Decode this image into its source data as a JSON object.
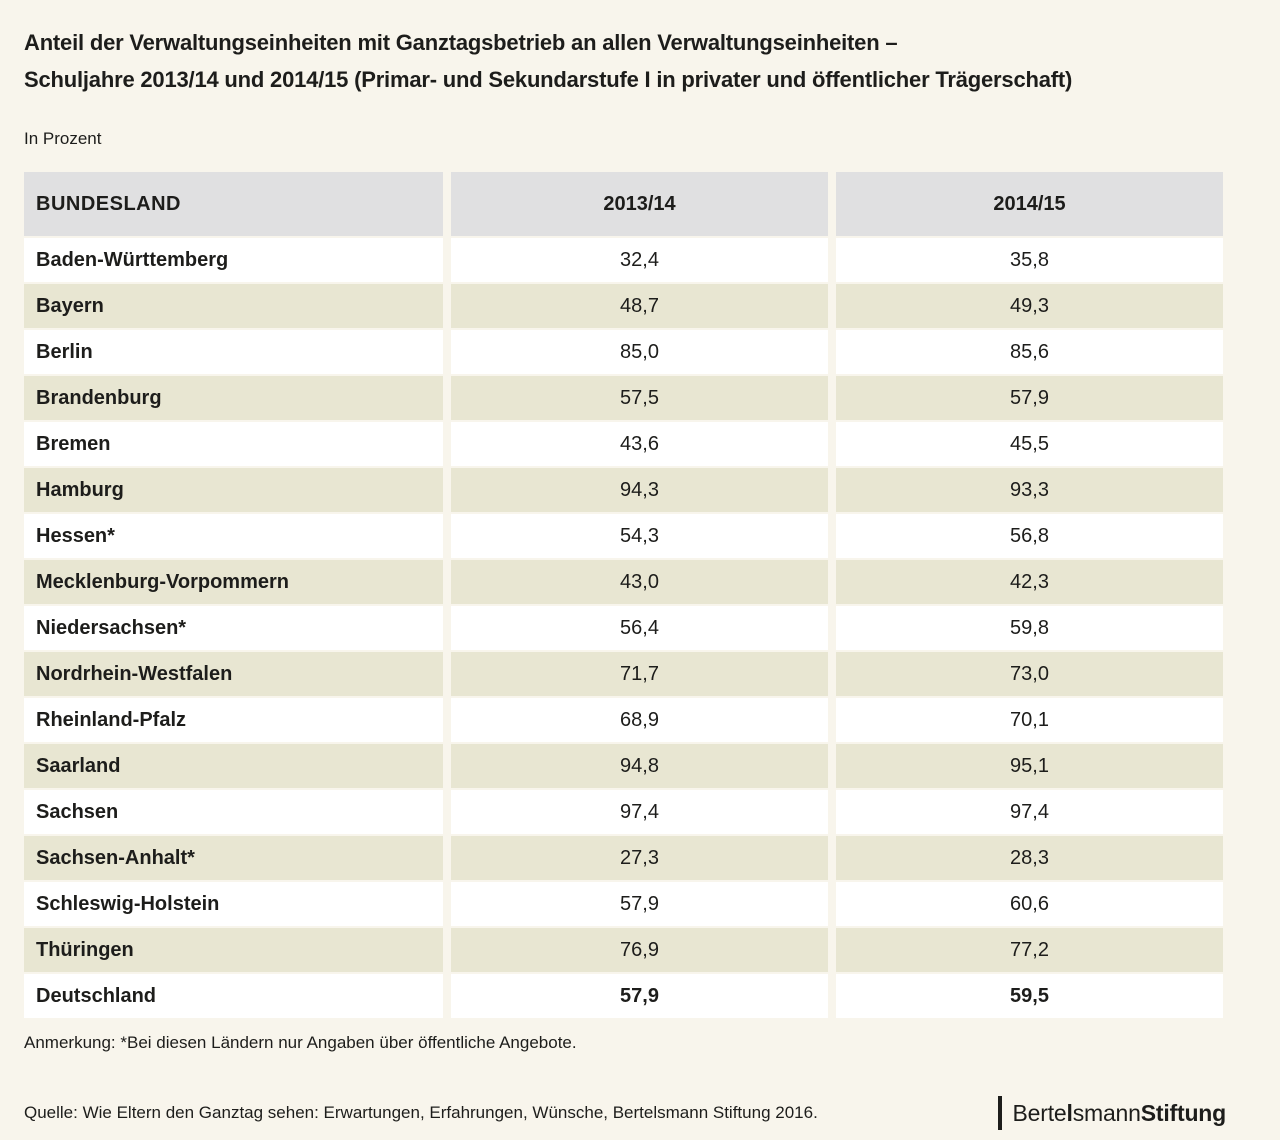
{
  "header": {
    "title_line1": "Anteil der Verwaltungseinheiten mit Ganztagsbetrieb an allen Verwaltungseinheiten –",
    "title_line2": "Schuljahre 2013/14 und 2014/15 (Primar- und Sekundarstufe I in privater und öffentlicher Trägerschaft)",
    "subtitle": "In Prozent"
  },
  "table": {
    "columns": [
      "BUNDESLAND",
      "2013/14",
      "2014/15"
    ],
    "rows": [
      {
        "land": "Baden-Württemberg",
        "y1314": "32,4",
        "y1415": "35,8",
        "is_total": false
      },
      {
        "land": "Bayern",
        "y1314": "48,7",
        "y1415": "49,3",
        "is_total": false
      },
      {
        "land": "Berlin",
        "y1314": "85,0",
        "y1415": "85,6",
        "is_total": false
      },
      {
        "land": "Brandenburg",
        "y1314": "57,5",
        "y1415": "57,9",
        "is_total": false
      },
      {
        "land": "Bremen",
        "y1314": "43,6",
        "y1415": "45,5",
        "is_total": false
      },
      {
        "land": "Hamburg",
        "y1314": "94,3",
        "y1415": "93,3",
        "is_total": false
      },
      {
        "land": "Hessen*",
        "y1314": "54,3",
        "y1415": "56,8",
        "is_total": false
      },
      {
        "land": "Mecklenburg-Vorpommern",
        "y1314": "43,0",
        "y1415": "42,3",
        "is_total": false
      },
      {
        "land": "Niedersachsen*",
        "y1314": "56,4",
        "y1415": "59,8",
        "is_total": false
      },
      {
        "land": "Nordrhein-Westfalen",
        "y1314": "71,7",
        "y1415": "73,0",
        "is_total": false
      },
      {
        "land": "Rheinland-Pfalz",
        "y1314": "68,9",
        "y1415": "70,1",
        "is_total": false
      },
      {
        "land": "Saarland",
        "y1314": "94,8",
        "y1415": "95,1",
        "is_total": false
      },
      {
        "land": "Sachsen",
        "y1314": "97,4",
        "y1415": "97,4",
        "is_total": false
      },
      {
        "land": "Sachsen-Anhalt*",
        "y1314": "27,3",
        "y1415": "28,3",
        "is_total": false
      },
      {
        "land": "Schleswig-Holstein",
        "y1314": "57,9",
        "y1415": "60,6",
        "is_total": false
      },
      {
        "land": "Thüringen",
        "y1314": "76,9",
        "y1415": "77,2",
        "is_total": false
      },
      {
        "land": "Deutschland",
        "y1314": "57,9",
        "y1415": "59,5",
        "is_total": true
      }
    ]
  },
  "note": "Anmerkung: *Bei diesen Ländern nur Angaben über öffentliche Angebote.",
  "source": "Quelle: Wie Eltern den Ganztag sehen: Erwartungen, Erfahrungen, Wünsche, Bertelsmann Stiftung 2016.",
  "logo": {
    "part1": "Berte",
    "part2": "l",
    "part3": "smann",
    "part4": "Stiftung"
  },
  "colors": {
    "page_background": "#f8f5ec",
    "header_row_background": "#e0e0e1",
    "alt_row_background": "#e8e6d2",
    "row_background": "#ffffff",
    "text": "#1d1d1b"
  },
  "chart_data": {
    "type": "table",
    "title": "Anteil der Verwaltungseinheiten mit Ganztagsbetrieb an allen Verwaltungseinheiten – Schuljahre 2013/14 und 2014/15 (Primar- und Sekundarstufe I in privater und öffentlicher Trägerschaft)",
    "unit": "In Prozent",
    "categories": [
      "Baden-Württemberg",
      "Bayern",
      "Berlin",
      "Brandenburg",
      "Bremen",
      "Hamburg",
      "Hessen",
      "Mecklenburg-Vorpommern",
      "Niedersachsen",
      "Nordrhein-Westfalen",
      "Rheinland-Pfalz",
      "Saarland",
      "Sachsen",
      "Sachsen-Anhalt",
      "Schleswig-Holstein",
      "Thüringen",
      "Deutschland"
    ],
    "series": [
      {
        "name": "2013/14",
        "values": [
          32.4,
          48.7,
          85.0,
          57.5,
          43.6,
          94.3,
          54.3,
          43.0,
          56.4,
          71.7,
          68.9,
          94.8,
          97.4,
          27.3,
          57.9,
          76.9,
          57.9
        ]
      },
      {
        "name": "2014/15",
        "values": [
          35.8,
          49.3,
          85.6,
          57.9,
          45.5,
          93.3,
          56.8,
          42.3,
          59.8,
          73.0,
          70.1,
          95.1,
          97.4,
          28.3,
          60.6,
          77.2,
          59.5
        ]
      }
    ],
    "footnote": "Anmerkung: *Bei diesen Ländern nur Angaben über öffentliche Angebote.",
    "source": "Quelle: Wie Eltern den Ganztag sehen: Erwartungen, Erfahrungen, Wünsche, Bertelsmann Stiftung 2016."
  }
}
